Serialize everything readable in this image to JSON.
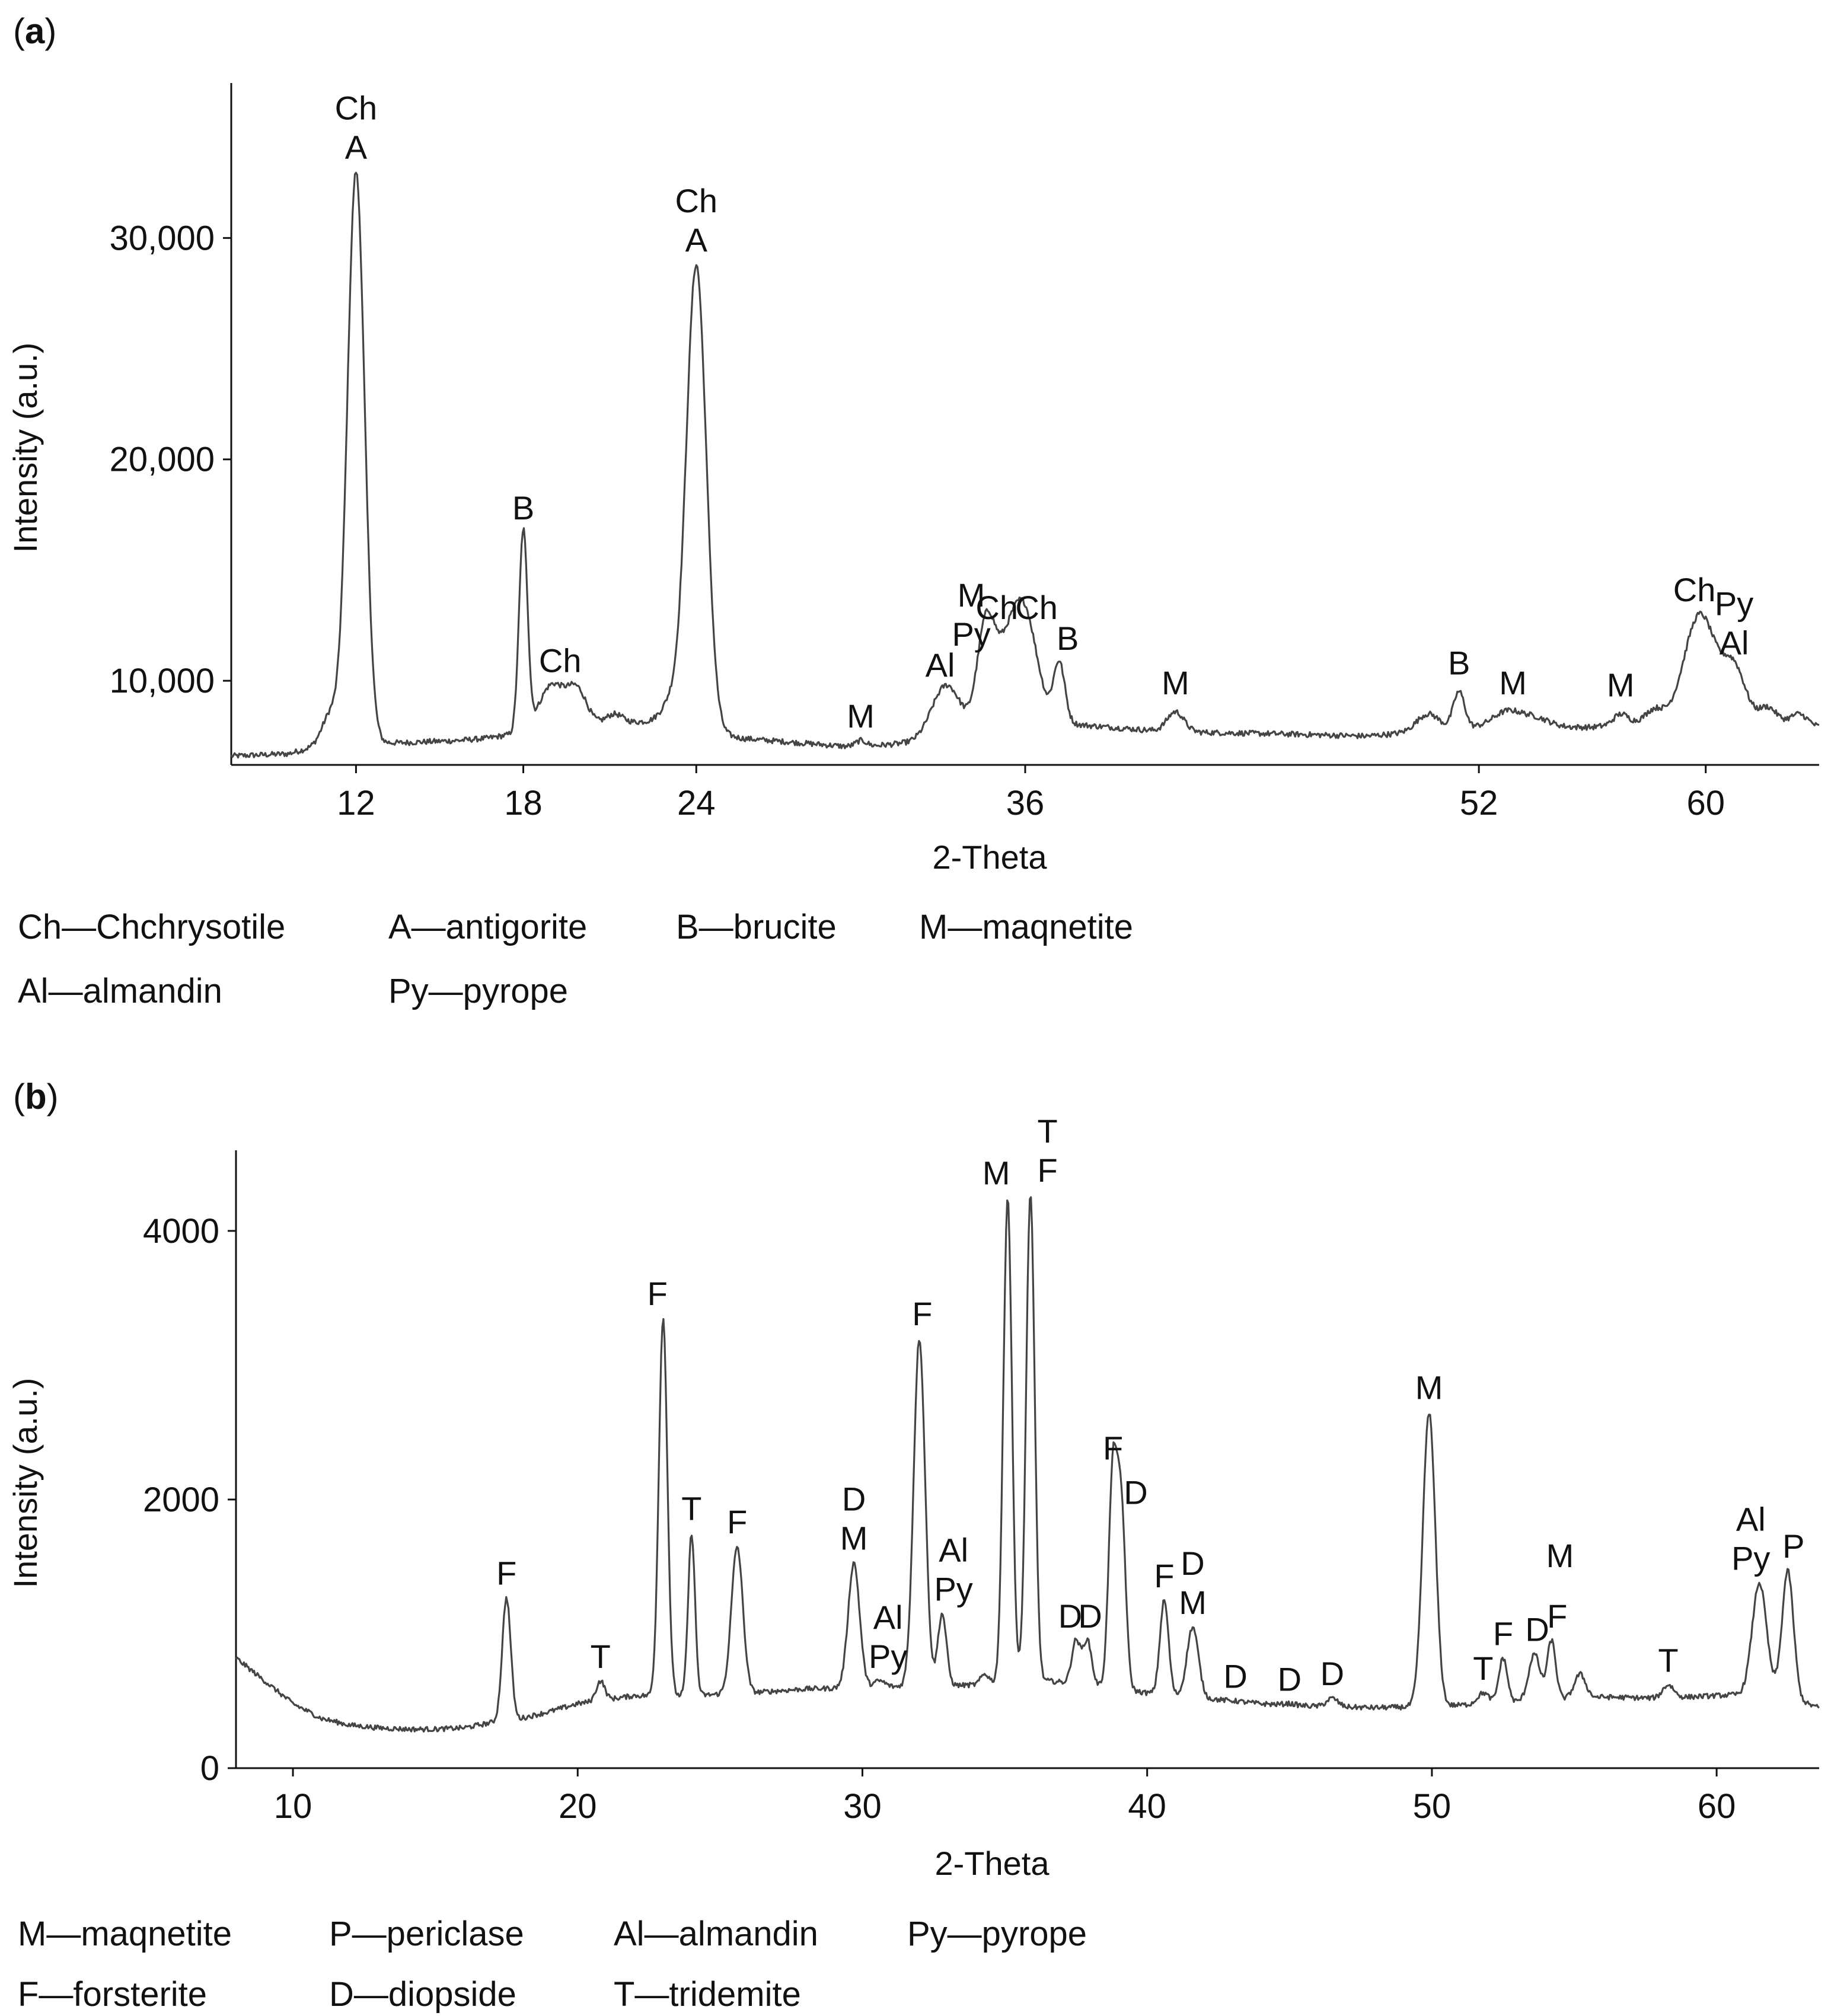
{
  "chart_data": [
    {
      "panel": "a",
      "type": "line",
      "title": "",
      "xlabel": "2-Theta",
      "ylabel": "Intensity (a.u.)",
      "xlim": [
        8,
        64
      ],
      "ylim": [
        6200,
        37000
      ],
      "xticks": [
        {
          "label": "12",
          "pos": 12.4
        },
        {
          "label": "18",
          "pos": 18.3
        },
        {
          "label": "24",
          "pos": 24.4
        },
        {
          "label": "36",
          "pos": 36.0
        },
        {
          "label": "52",
          "pos": 52.0
        },
        {
          "label": "60",
          "pos": 60.0
        }
      ],
      "yticks": [
        {
          "label": "10,000",
          "value": 10000
        },
        {
          "label": "20,000",
          "value": 20000
        },
        {
          "label": "30,000",
          "value": 30000
        }
      ],
      "baseline": [
        [
          8,
          6600
        ],
        [
          10,
          6700
        ],
        [
          11.5,
          7200
        ],
        [
          14,
          7200
        ],
        [
          16,
          7300
        ],
        [
          17,
          7400
        ],
        [
          18,
          7600
        ],
        [
          21,
          8000
        ],
        [
          23,
          8200
        ],
        [
          26,
          7400
        ],
        [
          30,
          7000
        ],
        [
          33,
          7300
        ],
        [
          36,
          8300
        ],
        [
          38,
          8000
        ],
        [
          41,
          7700
        ],
        [
          45,
          7600
        ],
        [
          48,
          7500
        ],
        [
          52,
          7900
        ],
        [
          56,
          7900
        ],
        [
          58,
          8200
        ],
        [
          62,
          8200
        ],
        [
          64,
          7900
        ]
      ],
      "peaks": [
        [
          11.5,
          8500,
          0.3
        ],
        [
          12.4,
          33000,
          0.3
        ],
        [
          18.3,
          16700,
          0.15
        ],
        [
          19.3,
          9800,
          0.45
        ],
        [
          20.2,
          9500,
          0.35
        ],
        [
          21.5,
          8500,
          0.3
        ],
        [
          23.5,
          9000,
          0.3
        ],
        [
          24.4,
          28800,
          0.35
        ],
        [
          30.2,
          7300,
          0.2
        ],
        [
          33.2,
          9800,
          0.5
        ],
        [
          34.6,
          11900,
          0.3
        ],
        [
          35.3,
          10900,
          0.5
        ],
        [
          36.0,
          12400,
          0.45
        ],
        [
          37.2,
          10800,
          0.2
        ],
        [
          41.3,
          8600,
          0.3
        ],
        [
          50.2,
          8500,
          0.4
        ],
        [
          51.3,
          9500,
          0.2
        ],
        [
          53.0,
          8600,
          0.5
        ],
        [
          54.0,
          8300,
          0.5
        ],
        [
          57.0,
          8500,
          0.25
        ],
        [
          58.2,
          8700,
          0.3
        ],
        [
          59.8,
          13000,
          0.55
        ],
        [
          61.0,
          10500,
          0.4
        ],
        [
          62.2,
          8800,
          0.3
        ],
        [
          63.3,
          8500,
          0.3
        ]
      ],
      "annotations": [
        {
          "x": 12.4,
          "y": 33000,
          "lines": [
            "Ch",
            "A"
          ]
        },
        {
          "x": 18.3,
          "y": 16700,
          "lines": [
            "B"
          ]
        },
        {
          "x": 19.6,
          "y": 9800,
          "lines": [
            "Ch"
          ]
        },
        {
          "x": 24.4,
          "y": 28800,
          "lines": [
            "Ch",
            "A"
          ]
        },
        {
          "x": 30.2,
          "y": 7300,
          "lines": [
            "M"
          ]
        },
        {
          "x": 33.0,
          "y": 9600,
          "lines": [
            "Al"
          ]
        },
        {
          "x": 34.1,
          "y": 11000,
          "lines": [
            "M",
            "Py"
          ]
        },
        {
          "x": 35.0,
          "y": 12200,
          "lines": [
            "Ch"
          ]
        },
        {
          "x": 36.4,
          "y": 12200,
          "lines": [
            "Ch"
          ]
        },
        {
          "x": 37.5,
          "y": 10800,
          "lines": [
            "B"
          ]
        },
        {
          "x": 41.3,
          "y": 8800,
          "lines": [
            "M"
          ]
        },
        {
          "x": 51.3,
          "y": 9700,
          "lines": [
            "B"
          ]
        },
        {
          "x": 53.2,
          "y": 8800,
          "lines": [
            "M"
          ]
        },
        {
          "x": 57.0,
          "y": 8700,
          "lines": [
            "M"
          ]
        },
        {
          "x": 59.6,
          "y": 13000,
          "lines": [
            "Ch"
          ]
        },
        {
          "x": 61.0,
          "y": 10600,
          "lines": [
            "Py",
            "Al"
          ]
        }
      ]
    },
    {
      "panel": "b",
      "type": "line",
      "title": "",
      "xlabel": "2-Theta",
      "ylabel": "Intensity (a.u.)",
      "xlim": [
        8,
        63.6
      ],
      "ylim": [
        0,
        4600
      ],
      "xticks": [
        {
          "label": "10",
          "pos": 10
        },
        {
          "label": "20",
          "pos": 20
        },
        {
          "label": "30",
          "pos": 30
        },
        {
          "label": "40",
          "pos": 40
        },
        {
          "label": "50",
          "pos": 50
        },
        {
          "label": "60",
          "pos": 60
        }
      ],
      "yticks": [
        {
          "label": "0",
          "value": 0
        },
        {
          "label": "2000",
          "value": 2000
        },
        {
          "label": "4000",
          "value": 4000
        }
      ],
      "baseline": [
        [
          8,
          820
        ],
        [
          9,
          650
        ],
        [
          10,
          480
        ],
        [
          11,
          370
        ],
        [
          12,
          320
        ],
        [
          13,
          300
        ],
        [
          14,
          290
        ],
        [
          15,
          290
        ],
        [
          16,
          300
        ],
        [
          17,
          340
        ],
        [
          18,
          370
        ],
        [
          19,
          420
        ],
        [
          20,
          480
        ],
        [
          22,
          540
        ],
        [
          24,
          540
        ],
        [
          26,
          560
        ],
        [
          28,
          590
        ],
        [
          30,
          600
        ],
        [
          32,
          610
        ],
        [
          34,
          620
        ],
        [
          35,
          640
        ],
        [
          36,
          660
        ],
        [
          38,
          620
        ],
        [
          40,
          560
        ],
        [
          42,
          520
        ],
        [
          44,
          480
        ],
        [
          46,
          460
        ],
        [
          48,
          450
        ],
        [
          50,
          460
        ],
        [
          52,
          480
        ],
        [
          54,
          510
        ],
        [
          56,
          530
        ],
        [
          58,
          520
        ],
        [
          60,
          540
        ],
        [
          62,
          560
        ],
        [
          63.6,
          450
        ]
      ],
      "peaks": [
        [
          17.5,
          1270,
          0.15
        ],
        [
          20.8,
          650,
          0.15
        ],
        [
          23.0,
          3350,
          0.15
        ],
        [
          24.0,
          1750,
          0.12
        ],
        [
          25.6,
          1650,
          0.2
        ],
        [
          29.7,
          1530,
          0.2
        ],
        [
          30.6,
          650,
          0.2
        ],
        [
          32.0,
          3200,
          0.2
        ],
        [
          32.8,
          1150,
          0.15
        ],
        [
          34.3,
          700,
          0.15
        ],
        [
          35.1,
          4250,
          0.15
        ],
        [
          35.9,
          4270,
          0.15
        ],
        [
          37.5,
          950,
          0.15
        ],
        [
          37.9,
          950,
          0.15
        ],
        [
          38.8,
          2200,
          0.15
        ],
        [
          39.1,
          1870,
          0.15
        ],
        [
          40.6,
          1250,
          0.15
        ],
        [
          41.6,
          1050,
          0.2
        ],
        [
          43.1,
          500,
          0.2
        ],
        [
          45.0,
          480,
          0.2
        ],
        [
          46.5,
          520,
          0.2
        ],
        [
          49.9,
          2650,
          0.22
        ],
        [
          51.8,
          560,
          0.2
        ],
        [
          52.5,
          820,
          0.15
        ],
        [
          53.6,
          850,
          0.2
        ],
        [
          54.2,
          950,
          0.15
        ],
        [
          55.2,
          700,
          0.2
        ],
        [
          58.3,
          620,
          0.2
        ],
        [
          61.5,
          1380,
          0.25
        ],
        [
          62.5,
          1470,
          0.2
        ]
      ],
      "annotations": [
        {
          "x": 17.5,
          "y": 1270,
          "lines": [
            "F"
          ]
        },
        {
          "x": 20.8,
          "y": 650,
          "lines": [
            "T"
          ]
        },
        {
          "x": 22.8,
          "y": 3350,
          "lines": [
            "F"
          ]
        },
        {
          "x": 24.0,
          "y": 1750,
          "lines": [
            "T"
          ]
        },
        {
          "x": 25.6,
          "y": 1650,
          "lines": [
            "F"
          ]
        },
        {
          "x": 29.7,
          "y": 1530,
          "lines": [
            "D",
            "M"
          ]
        },
        {
          "x": 30.9,
          "y": 650,
          "lines": [
            "Al",
            "Py"
          ]
        },
        {
          "x": 32.1,
          "y": 3200,
          "lines": [
            "F"
          ]
        },
        {
          "x": 33.2,
          "y": 1150,
          "lines": [
            "Al",
            "Py"
          ]
        },
        {
          "x": 34.7,
          "y": 4250,
          "lines": [
            "M"
          ]
        },
        {
          "x": 36.5,
          "y": 4270,
          "lines": [
            "T",
            "F"
          ]
        },
        {
          "x": 37.3,
          "y": 950,
          "lines": [
            "D"
          ]
        },
        {
          "x": 38.0,
          "y": 950,
          "lines": [
            "D"
          ]
        },
        {
          "x": 38.8,
          "y": 2200,
          "lines": [
            "F"
          ]
        },
        {
          "x": 39.6,
          "y": 1870,
          "lines": [
            "D"
          ]
        },
        {
          "x": 40.6,
          "y": 1250,
          "lines": [
            "F"
          ]
        },
        {
          "x": 41.6,
          "y": 1050,
          "lines": [
            "D",
            "M"
          ]
        },
        {
          "x": 43.1,
          "y": 500,
          "lines": [
            "D"
          ]
        },
        {
          "x": 45.0,
          "y": 480,
          "lines": [
            "D"
          ]
        },
        {
          "x": 46.5,
          "y": 520,
          "lines": [
            "D"
          ]
        },
        {
          "x": 49.9,
          "y": 2650,
          "lines": [
            "M"
          ]
        },
        {
          "x": 51.8,
          "y": 560,
          "lines": [
            "T"
          ]
        },
        {
          "x": 52.5,
          "y": 820,
          "lines": [
            "F"
          ]
        },
        {
          "x": 53.7,
          "y": 850,
          "lines": [
            "D"
          ]
        },
        {
          "x": 54.4,
          "y": 950,
          "lines": [
            "F"
          ]
        },
        {
          "x": 54.5,
          "y": 1400,
          "lines": [
            "M"
          ]
        },
        {
          "x": 58.3,
          "y": 620,
          "lines": [
            "T"
          ]
        },
        {
          "x": 61.2,
          "y": 1380,
          "lines": [
            "Al",
            "Py"
          ]
        },
        {
          "x": 62.7,
          "y": 1470,
          "lines": [
            "P"
          ]
        }
      ]
    }
  ],
  "panel_a": {
    "label": "a",
    "legend_row1": [
      "Ch—Chchrysotile",
      "A—antigorite",
      "B—brucite",
      "M—maqnetite"
    ],
    "legend_row2": [
      "Al—almandin",
      "Py—pyrope"
    ]
  },
  "panel_b": {
    "label": "b",
    "legend_row1": [
      "M—maqnetite",
      "P—periclase",
      "Al—almandin",
      "Py—pyrope"
    ],
    "legend_row2": [
      "F—forsterite",
      "D—diopside",
      "T—tridemite"
    ]
  },
  "colors": {
    "trace": "#444444",
    "axis": "#111111",
    "text": "#111111"
  }
}
